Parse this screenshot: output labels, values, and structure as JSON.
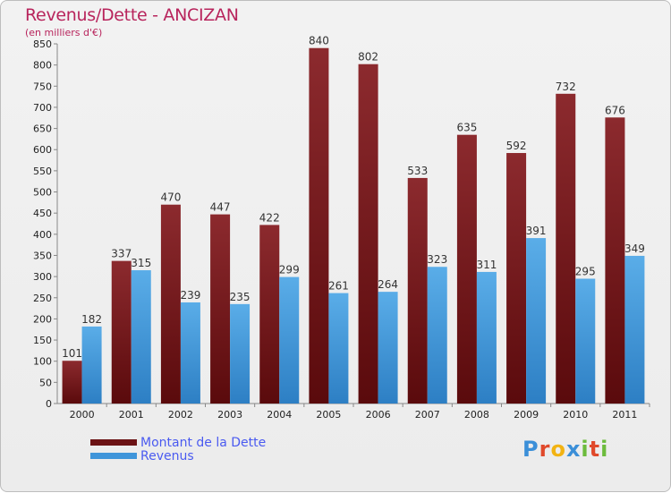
{
  "header": {
    "title": "Revenus/Dette - ANCIZAN",
    "subtitle": "(en milliers d'€)"
  },
  "legend": {
    "debt_label": "Montant de la Dette",
    "revenue_label": "Revenus"
  },
  "logo": {
    "letters": [
      "P",
      "r",
      "o",
      "x",
      "i",
      "t",
      "i"
    ],
    "colors": [
      "#3b8fd8",
      "#e0492b",
      "#f2b313",
      "#3b8fd8",
      "#6cbb3c",
      "#e0492b",
      "#6cbb3c"
    ]
  },
  "colors": {
    "debt_top": "#8c2a2e",
    "debt_bottom": "#5a0a0c",
    "revenue_top": "#5aade8",
    "revenue_bottom": "#2d7fc4",
    "title": "#b8245c",
    "legend_text": "#4a5af0"
  },
  "chart_data": {
    "type": "bar",
    "title": "Revenus/Dette - ANCIZAN",
    "ylabel": "(en milliers d'€)",
    "xlabel": "",
    "ylim": [
      0,
      850
    ],
    "ytick_step": 50,
    "grid": false,
    "legend_position": "bottom-left",
    "categories": [
      "2000",
      "2001",
      "2002",
      "2003",
      "2004",
      "2005",
      "2006",
      "2007",
      "2008",
      "2009",
      "2010",
      "2011"
    ],
    "series": [
      {
        "name": "Montant de la Dette",
        "values": [
          101,
          337,
          470,
          447,
          422,
          840,
          802,
          533,
          635,
          592,
          732,
          676
        ]
      },
      {
        "name": "Revenus",
        "values": [
          182,
          315,
          239,
          235,
          299,
          261,
          264,
          323,
          311,
          391,
          295,
          349
        ]
      }
    ]
  }
}
